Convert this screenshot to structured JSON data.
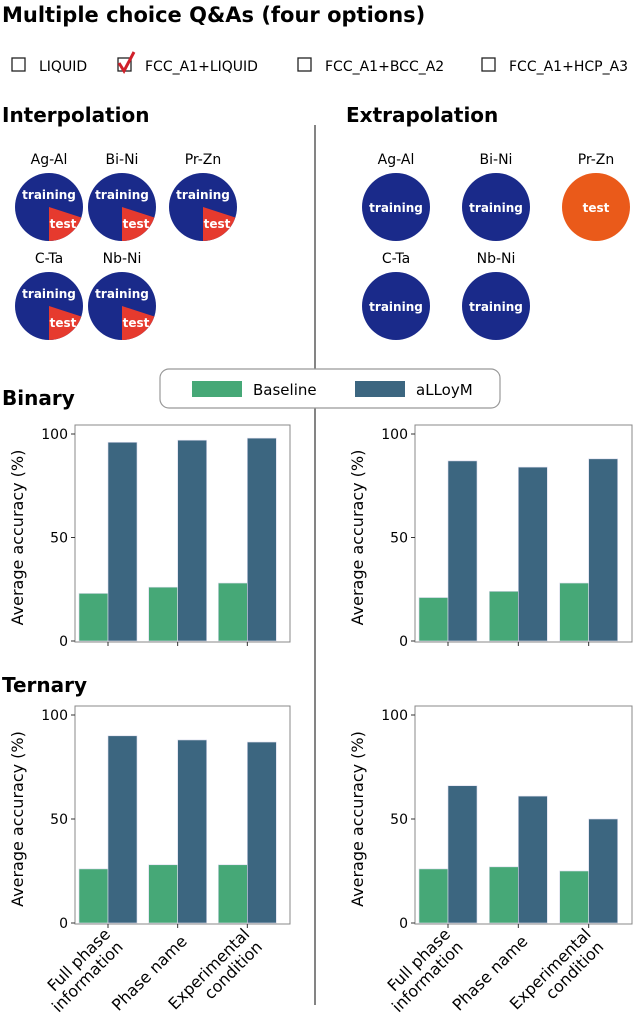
{
  "title": "Multiple choice Q&As (four options)",
  "options": [
    {
      "label": "LIQUID",
      "checked": false
    },
    {
      "label": "FCC_A1+LIQUID",
      "checked": true
    },
    {
      "label": "FCC_A1+BCC_A2",
      "checked": false
    },
    {
      "label": "FCC_A1+HCP_A3",
      "checked": false
    }
  ],
  "colors": {
    "training": "#1a2a8a",
    "test_interp": "#e63a2e",
    "test_extrap": "#ea5a1a",
    "baseline": "#46a877",
    "alloym": "#3c6680",
    "check": "#d0202a"
  },
  "sections": {
    "interpolation": "Interpolation",
    "extrapolation": "Extrapolation",
    "binary": "Binary",
    "ternary": "Ternary"
  },
  "pie_labels": {
    "training": "training",
    "test": "test"
  },
  "interpolation_systems": [
    {
      "name": "Ag-Al",
      "test_fraction": 0.2
    },
    {
      "name": "Bi-Ni",
      "test_fraction": 0.2
    },
    {
      "name": "Pr-Zn",
      "test_fraction": 0.2
    },
    {
      "name": "C-Ta",
      "test_fraction": 0.2
    },
    {
      "name": "Nb-Ni",
      "test_fraction": 0.2
    }
  ],
  "extrapolation_systems": [
    {
      "name": "Ag-Al",
      "role": "training"
    },
    {
      "name": "Bi-Ni",
      "role": "training"
    },
    {
      "name": "Pr-Zn",
      "role": "test"
    },
    {
      "name": "C-Ta",
      "role": "training"
    },
    {
      "name": "Nb-Ni",
      "role": "training"
    }
  ],
  "legend": [
    "Baseline",
    "aLLoyM"
  ],
  "chart_data": [
    {
      "type": "bar",
      "categories": [
        "Full phase information",
        "Phase name",
        "Experimental condition"
      ],
      "series": [
        {
          "name": "Baseline",
          "values": [
            23,
            26,
            28
          ]
        },
        {
          "name": "aLLoyM",
          "values": [
            96,
            97,
            98
          ]
        }
      ],
      "ylabel": "Average accuracy (%)",
      "ylim": [
        0,
        100
      ],
      "yticks": [
        0,
        50,
        100
      ],
      "grid": false
    },
    {
      "type": "bar",
      "categories": [
        "Full phase information",
        "Phase name",
        "Experimental condition"
      ],
      "series": [
        {
          "name": "Baseline",
          "values": [
            21,
            24,
            28
          ]
        },
        {
          "name": "aLLoyM",
          "values": [
            87,
            84,
            88
          ]
        }
      ],
      "ylabel": "Average accuracy (%)",
      "ylim": [
        0,
        100
      ],
      "yticks": [
        0,
        50,
        100
      ],
      "grid": false
    },
    {
      "type": "bar",
      "categories": [
        "Full phase information",
        "Phase name",
        "Experimental condition"
      ],
      "series": [
        {
          "name": "Baseline",
          "values": [
            26,
            28,
            28
          ]
        },
        {
          "name": "aLLoyM",
          "values": [
            90,
            88,
            87
          ]
        }
      ],
      "ylabel": "Average accuracy (%)",
      "ylim": [
        0,
        100
      ],
      "yticks": [
        0,
        50,
        100
      ],
      "grid": false
    },
    {
      "type": "bar",
      "categories": [
        "Full phase information",
        "Phase name",
        "Experimental condition"
      ],
      "series": [
        {
          "name": "Baseline",
          "values": [
            26,
            27,
            25
          ]
        },
        {
          "name": "aLLoyM",
          "values": [
            66,
            61,
            50
          ]
        }
      ],
      "ylabel": "Average accuracy (%)",
      "ylim": [
        0,
        100
      ],
      "yticks": [
        0,
        50,
        100
      ],
      "grid": false
    }
  ],
  "category_lines": [
    [
      "Full phase",
      "information"
    ],
    [
      "Phase name"
    ],
    [
      "Experimental",
      "condition"
    ]
  ]
}
